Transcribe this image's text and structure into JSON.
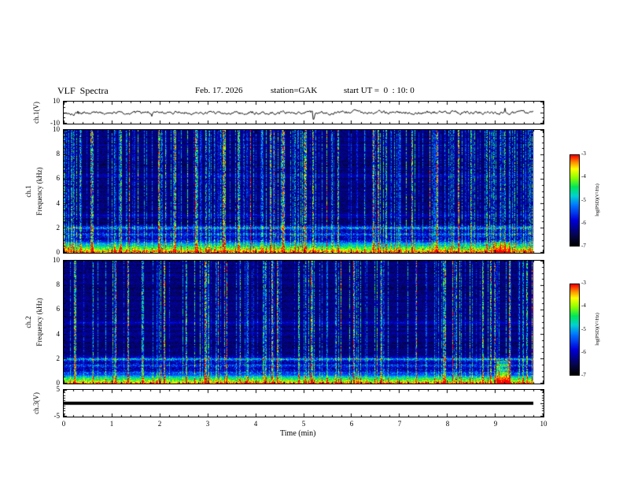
{
  "header": {
    "title": "VLF  Spectra",
    "date": "Feb. 17. 2026",
    "station": "station=GAK",
    "start_ut": "start UT =  0  : 10: 0"
  },
  "xaxis": {
    "label": "Time (min)",
    "range": [
      0,
      10
    ],
    "ticks": [
      0,
      1,
      2,
      3,
      4,
      5,
      6,
      7,
      8,
      9,
      10
    ],
    "data_end_min": 9.8
  },
  "panels": [
    {
      "id": "ch1_wave",
      "channel_label": "ch.1(V)",
      "yrange": [
        -10,
        10
      ],
      "yticks": [
        10,
        -10
      ]
    },
    {
      "id": "ch1_spec",
      "channel_label": "ch.1",
      "axis_label": "Frequency (kHz)",
      "yrange": [
        0,
        10
      ],
      "yticks": [
        0,
        2,
        4,
        6,
        8,
        10
      ]
    },
    {
      "id": "ch2_spec",
      "channel_label": "ch.2",
      "axis_label": "Frequency (kHz)",
      "yrange": [
        0,
        10
      ],
      "yticks": [
        0,
        2,
        4,
        6,
        8,
        10
      ]
    },
    {
      "id": "ch3_wave",
      "channel_label": "ch.3(V)",
      "yrange": [
        -5,
        5
      ],
      "yticks": [
        5,
        -5
      ]
    }
  ],
  "colorbars": [
    {
      "label": "log(PSD)(V²/Hz)",
      "ticks": [
        -3,
        -4,
        -5,
        -6,
        -7
      ],
      "range": [
        -7,
        -3
      ]
    },
    {
      "label": "log(PSD)(V²/Hz)",
      "ticks": [
        -3,
        -4,
        -5,
        -6,
        -7
      ],
      "range": [
        -7,
        -3
      ]
    }
  ],
  "chart_data": [
    {
      "type": "line",
      "name": "ch.1 voltage time series",
      "xlabel": "Time (min)",
      "ylabel": "ch.1(V)",
      "xlim": [
        0,
        10
      ],
      "ylim": [
        -10,
        10
      ],
      "data_end_min": 9.8,
      "baseline_V": 0,
      "typical_amplitude_V": 1.5,
      "spike": {
        "t_min": 5.2,
        "v": -6
      },
      "description": "continuous band-limited noise around 0 V with occasional impulsive excursions of a few volts"
    },
    {
      "type": "heatmap",
      "name": "ch.1 VLF spectrogram",
      "xlabel": "Time (min)",
      "ylabel": "Frequency (kHz)",
      "xlim": [
        0,
        10
      ],
      "ylim": [
        0,
        10
      ],
      "data_end_min": 9.8,
      "colorbar": {
        "label": "log(PSD)(V²/Hz)",
        "range": [
          -7,
          -3
        ],
        "ticks": [
          -3,
          -4,
          -5,
          -6,
          -7
        ]
      },
      "features": {
        "background_level": "-6.5 to -7 (dark blue/black)",
        "sferics": "dense vertical broadband impulses (cyan/green/yellow) spanning 0-10 kHz",
        "sferic_density": {
          "strong": 0.04,
          "moderate": 0.34
        },
        "intense_band": {
          "f_low_kHz": 0,
          "f_high_kHz": 1.1,
          "level": "-3 to -4 (red/orange with yellow speckle)"
        },
        "speckle_zone_kHz": [
          0.9,
          2.3
        ],
        "narrowband_lines_kHz": [
          {
            "f": 2.05,
            "a": 0.3,
            "w": 0.07
          },
          {
            "f": 1.55,
            "a": 0.16,
            "w": 0.06
          },
          {
            "f": 3.1,
            "a": 0.07,
            "w": 0.06
          },
          {
            "f": 6.3,
            "a": 0.05,
            "w": 0.1
          }
        ],
        "hotspot": {
          "t0_min": 8.95,
          "t1_min": 9.3,
          "f_top_kHz": 0.9,
          "a": 0.2
        }
      }
    },
    {
      "type": "heatmap",
      "name": "ch.2 VLF spectrogram",
      "xlabel": "Time (min)",
      "ylabel": "Frequency (kHz)",
      "xlim": [
        0,
        10
      ],
      "ylim": [
        0,
        10
      ],
      "data_end_min": 9.8,
      "colorbar": {
        "label": "log(PSD)(V²/Hz)",
        "range": [
          -7,
          -3
        ],
        "ticks": [
          -3,
          -4,
          -5,
          -6,
          -7
        ]
      },
      "features": {
        "background_level": "-6.5 to -7 (dark blue/black)",
        "sferics": "vertical broadband impulses, slightly sparser than ch.1",
        "sferic_density": {
          "strong": 0.03,
          "moderate": 0.24
        },
        "intense_band": {
          "f_low_kHz": 0,
          "f_high_kHz": 1.0,
          "level": "-4 to -5 (cyan/green/yellow speckle)"
        },
        "speckle_zone_kHz": [
          0.8,
          2.2
        ],
        "narrowband_lines_kHz": [
          {
            "f": 2.0,
            "a": 0.32,
            "w": 0.07
          },
          {
            "f": 1.5,
            "a": 0.15,
            "w": 0.06
          },
          {
            "f": 5.0,
            "a": 0.1,
            "w": 0.08
          },
          {
            "f": 8.85,
            "a": 0.06,
            "w": 0.05
          }
        ],
        "hotspot": {
          "t0_min": 9.0,
          "t1_min": 9.3,
          "f_top_kHz": 1.9,
          "a": 0.35
        }
      }
    },
    {
      "type": "line",
      "name": "ch.3 voltage time series",
      "xlabel": "Time (min)",
      "ylabel": "ch.3(V)",
      "xlim": [
        0,
        10
      ],
      "ylim": [
        -5,
        5
      ],
      "data_end_min": 9.8,
      "constant_value": 0,
      "description": "flat thick trace at 0 V for the full record (no signal)"
    }
  ]
}
